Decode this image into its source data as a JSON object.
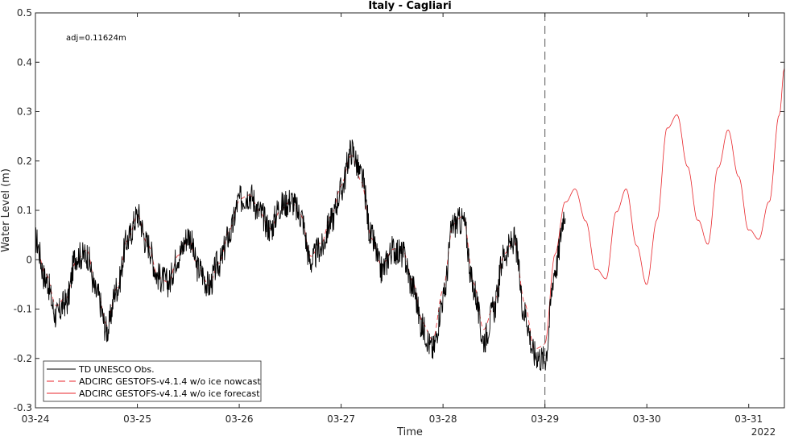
{
  "chart_data": {
    "type": "line",
    "title": "Italy - Cagliari",
    "xlabel": "Time",
    "ylabel": "Water Level (m)",
    "year_label": "2022",
    "annotation": "adj=0.11624m",
    "x_ticks": [
      "03-24",
      "03-25",
      "03-26",
      "03-27",
      "03-28",
      "03-29",
      "03-30",
      "03-31"
    ],
    "xlim": [
      0,
      7.35
    ],
    "ylim": [
      -0.3,
      0.5
    ],
    "y_ticks": [
      -0.3,
      -0.2,
      -0.1,
      0,
      0.1,
      0.2,
      0.3,
      0.4,
      0.5
    ],
    "y_tick_labels": [
      "-0.3",
      "-0.2",
      "-0.1",
      "0",
      "0.1",
      "0.2",
      "0.3",
      "0.4",
      "0.5"
    ],
    "nowcast_forecast_divider_x": 5.0,
    "grid": false,
    "legend_position": "bottom-left",
    "colors": {
      "obs": "#000000",
      "nowcast": "#e8262b",
      "forecast": "#e8262b",
      "divider": "#555555"
    },
    "series": [
      {
        "name": "TD UNESCO Obs.",
        "style": "solid",
        "color": "#000000",
        "x": [
          0.0,
          0.1,
          0.2,
          0.3,
          0.4,
          0.5,
          0.6,
          0.7,
          0.8,
          0.9,
          1.0,
          1.1,
          1.2,
          1.3,
          1.4,
          1.5,
          1.6,
          1.7,
          1.8,
          1.9,
          2.0,
          2.1,
          2.2,
          2.3,
          2.4,
          2.5,
          2.6,
          2.7,
          2.8,
          2.9,
          3.0,
          3.1,
          3.2,
          3.3,
          3.4,
          3.5,
          3.6,
          3.7,
          3.8,
          3.9,
          4.0,
          4.1,
          4.2,
          4.3,
          4.4,
          4.5,
          4.6,
          4.7,
          4.8,
          4.9,
          5.0,
          5.1,
          5.2
        ],
        "y": [
          0.04,
          -0.05,
          -0.12,
          -0.08,
          0.02,
          0.01,
          -0.08,
          -0.15,
          -0.05,
          0.05,
          0.09,
          0.02,
          -0.04,
          -0.04,
          0.02,
          0.05,
          -0.03,
          -0.06,
          0.0,
          0.06,
          0.12,
          0.12,
          0.09,
          0.07,
          0.12,
          0.12,
          0.08,
          -0.01,
          0.03,
          0.09,
          0.14,
          0.21,
          0.16,
          0.05,
          -0.01,
          0.02,
          0.0,
          -0.06,
          -0.13,
          -0.17,
          -0.08,
          0.06,
          0.07,
          -0.05,
          -0.15,
          -0.1,
          0.0,
          0.03,
          -0.1,
          -0.18,
          -0.2,
          -0.03,
          0.09
        ]
      },
      {
        "name": "ADCIRC GESTOFS-v4.1.4 w/o ice nowcast",
        "style": "dashed",
        "color": "#e8262b",
        "x": [
          0.0,
          0.1,
          0.2,
          0.3,
          0.4,
          0.5,
          0.6,
          0.7,
          0.8,
          0.9,
          1.0,
          1.1,
          1.2,
          1.3,
          1.4,
          1.5,
          1.6,
          1.7,
          1.8,
          1.9,
          2.0,
          2.1,
          2.2,
          2.3,
          2.4,
          2.5,
          2.6,
          2.7,
          2.8,
          2.9,
          3.0,
          3.1,
          3.2,
          3.3,
          3.4,
          3.5,
          3.6,
          3.7,
          3.8,
          3.9,
          4.0,
          4.1,
          4.2,
          4.3,
          4.4,
          4.5,
          4.6,
          4.7,
          4.8,
          4.9,
          5.0
        ],
        "y": [
          0.03,
          -0.04,
          -0.1,
          -0.07,
          0.01,
          0.02,
          -0.07,
          -0.14,
          -0.05,
          0.05,
          0.09,
          0.02,
          -0.04,
          -0.04,
          0.02,
          0.04,
          -0.03,
          -0.06,
          0.0,
          0.07,
          0.12,
          0.12,
          0.09,
          0.07,
          0.11,
          0.12,
          0.08,
          0.0,
          0.04,
          0.1,
          0.15,
          0.2,
          0.15,
          0.05,
          0.0,
          0.02,
          0.01,
          -0.05,
          -0.12,
          -0.15,
          -0.06,
          0.06,
          0.08,
          -0.04,
          -0.13,
          -0.09,
          0.0,
          0.03,
          -0.08,
          -0.17,
          -0.17
        ]
      },
      {
        "name": "ADCIRC GESTOFS-v4.1.4 w/o ice forecast",
        "style": "solid",
        "color": "#e8262b",
        "x": [
          5.0,
          5.1,
          5.2,
          5.3,
          5.4,
          5.5,
          5.6,
          5.7,
          5.8,
          5.9,
          6.0,
          6.1,
          6.2,
          6.3,
          6.4,
          6.5,
          6.6,
          6.7,
          6.8,
          6.9,
          7.0,
          7.1,
          7.2,
          7.3,
          7.35
        ],
        "y": [
          -0.17,
          0.0,
          0.11,
          0.15,
          0.09,
          -0.02,
          -0.05,
          0.09,
          0.15,
          0.04,
          -0.05,
          0.07,
          0.26,
          0.3,
          0.2,
          0.08,
          0.02,
          0.18,
          0.27,
          0.18,
          0.06,
          0.03,
          0.11,
          0.3,
          0.4
        ]
      }
    ]
  }
}
